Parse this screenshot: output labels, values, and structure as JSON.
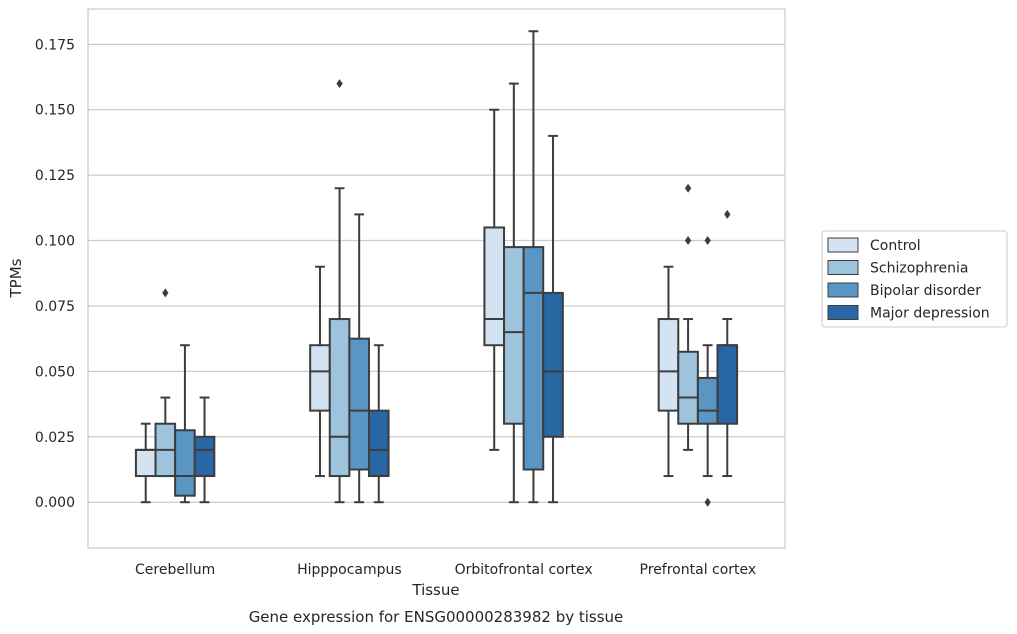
{
  "chart_data": {
    "type": "boxplot",
    "caption": "Gene expression for ENSG00000283982 by tissue",
    "xlabel": "Tissue",
    "ylabel": "TPMs",
    "ylim": [
      -0.0175,
      0.1885
    ],
    "yticks": [
      "0.000",
      "0.025",
      "0.050",
      "0.075",
      "0.100",
      "0.125",
      "0.150",
      "0.175"
    ],
    "ytick_values": [
      0,
      0.025,
      0.05,
      0.075,
      0.1,
      0.125,
      0.15,
      0.175
    ],
    "grid": "horizontal",
    "legend_position": "right",
    "categories": [
      "Cerebellum",
      "Hipppocampus",
      "Orbitofrontal cortex",
      "Prefrontal cortex"
    ],
    "series": [
      {
        "name": "Control",
        "color": "#d3e3f1",
        "boxes": [
          {
            "whislo": 0.0,
            "q1": 0.01,
            "med": 0.02,
            "q3": 0.02,
            "whishi": 0.03,
            "fliers": []
          },
          {
            "whislo": 0.01,
            "q1": 0.035,
            "med": 0.05,
            "q3": 0.06,
            "whishi": 0.09,
            "fliers": []
          },
          {
            "whislo": 0.02,
            "q1": 0.06,
            "med": 0.07,
            "q3": 0.105,
            "whishi": 0.15,
            "fliers": []
          },
          {
            "whislo": 0.01,
            "q1": 0.035,
            "med": 0.05,
            "q3": 0.07,
            "whishi": 0.09,
            "fliers": []
          }
        ]
      },
      {
        "name": "Schizophrenia",
        "color": "#9dc3dd",
        "boxes": [
          {
            "whislo": 0.01,
            "q1": 0.01,
            "med": 0.02,
            "q3": 0.03,
            "whishi": 0.04,
            "fliers": [
              0.08
            ]
          },
          {
            "whislo": 0.0,
            "q1": 0.01,
            "med": 0.025,
            "q3": 0.07,
            "whishi": 0.12,
            "fliers": [
              0.16
            ]
          },
          {
            "whislo": 0.0,
            "q1": 0.03,
            "med": 0.065,
            "q3": 0.0975,
            "whishi": 0.16,
            "fliers": []
          },
          {
            "whislo": 0.02,
            "q1": 0.03,
            "med": 0.04,
            "q3": 0.0575,
            "whishi": 0.07,
            "fliers": [
              0.1,
              0.12
            ]
          }
        ]
      },
      {
        "name": "Bipolar disorder",
        "color": "#5a96c3",
        "boxes": [
          {
            "whislo": 0.0,
            "q1": 0.0025,
            "med": 0.01,
            "q3": 0.0275,
            "whishi": 0.06,
            "fliers": []
          },
          {
            "whislo": 0.0,
            "q1": 0.0125,
            "med": 0.035,
            "q3": 0.0625,
            "whishi": 0.11,
            "fliers": []
          },
          {
            "whislo": 0.0,
            "q1": 0.0125,
            "med": 0.08,
            "q3": 0.0975,
            "whishi": 0.18,
            "fliers": []
          },
          {
            "whislo": 0.01,
            "q1": 0.03,
            "med": 0.035,
            "q3": 0.0475,
            "whishi": 0.06,
            "fliers": [
              0.0,
              0.1
            ]
          }
        ]
      },
      {
        "name": "Major depression",
        "color": "#2866a4",
        "boxes": [
          {
            "whislo": 0.0,
            "q1": 0.01,
            "med": 0.02,
            "q3": 0.025,
            "whishi": 0.04,
            "fliers": []
          },
          {
            "whislo": 0.0,
            "q1": 0.01,
            "med": 0.02,
            "q3": 0.035,
            "whishi": 0.06,
            "fliers": []
          },
          {
            "whislo": 0.0,
            "q1": 0.025,
            "med": 0.05,
            "q3": 0.08,
            "whishi": 0.14,
            "fliers": []
          },
          {
            "whislo": 0.01,
            "q1": 0.03,
            "med": 0.06,
            "q3": 0.06,
            "whishi": 0.07,
            "fliers": [
              0.11
            ]
          }
        ]
      }
    ]
  }
}
